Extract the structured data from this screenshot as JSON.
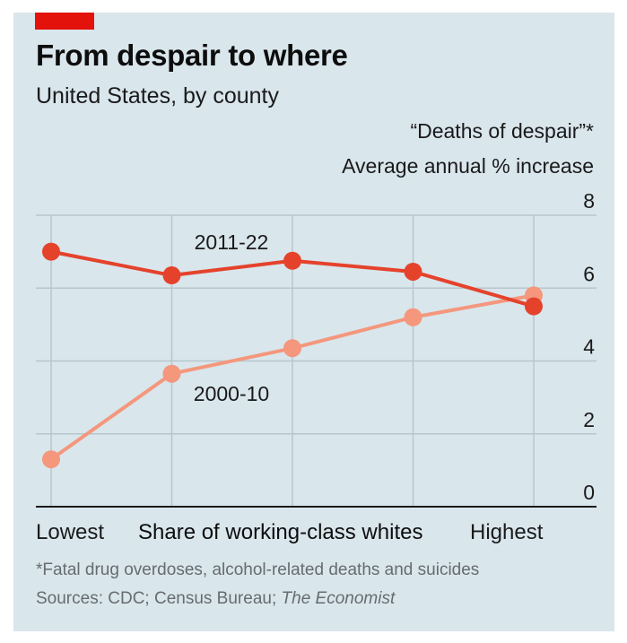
{
  "header": {
    "title": "From despair to where",
    "subtitle": "United States, by county"
  },
  "colors": {
    "background": "#d9e6ec",
    "brand_red": "#e3120b",
    "series_2011_22": "#e5422c",
    "series_2000_10": "#f4977c",
    "gridline": "#b7c6cd",
    "axis": "#1a1a1a"
  },
  "chart_data": {
    "type": "line",
    "title": "From despair to where",
    "subtitle": "United States, by county",
    "ylabel_line1": "“Deaths of despair”*",
    "ylabel_line2": "Average annual % increase",
    "xlabel": "Share of working-class whites",
    "x_end_labels": [
      "Lowest",
      "Highest"
    ],
    "x": [
      1,
      2,
      3,
      4,
      5
    ],
    "ylim": [
      0,
      8
    ],
    "yticks": [
      0,
      2,
      4,
      6,
      8
    ],
    "ytick_labels": [
      "0",
      "2",
      "4",
      "6",
      "8"
    ],
    "y_axis_side": "right",
    "grid": true,
    "series": [
      {
        "name": "2011-22",
        "values": [
          7.0,
          6.35,
          6.75,
          6.45,
          5.5
        ]
      },
      {
        "name": "2000-10",
        "values": [
          1.3,
          3.65,
          4.35,
          5.2,
          5.8
        ]
      }
    ]
  },
  "footnotes": {
    "note": "*Fatal drug overdoses, alcohol-related deaths and suicides",
    "sources_prefix": "Sources: CDC; Census Bureau; ",
    "sources_italic": "The Economist"
  }
}
